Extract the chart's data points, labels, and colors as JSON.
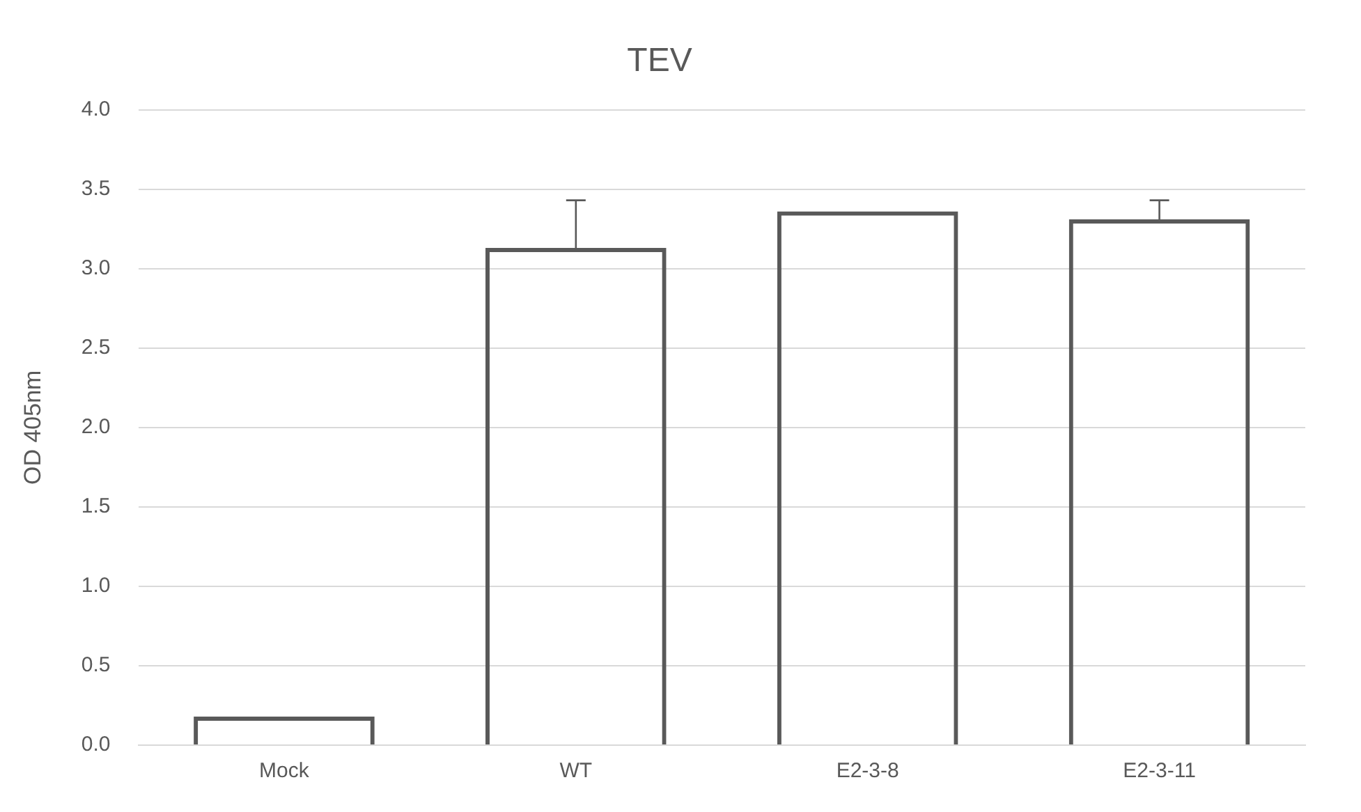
{
  "chart_data": {
    "type": "bar",
    "title": "TEV",
    "ylabel": "OD 405nm",
    "categories": [
      "Mock",
      "WT",
      "E2-3-8",
      "E2-3-11"
    ],
    "values": [
      0.18,
      3.13,
      3.36,
      3.31
    ],
    "errors": [
      null,
      [
        3.13,
        3.43
      ],
      null,
      [
        3.31,
        3.43
      ]
    ],
    "color": "#595959",
    "ylim": [
      0,
      4
    ],
    "yticks": [
      {
        "value": 0,
        "label": "0.0"
      },
      {
        "value": 0.5,
        "label": "0.5"
      },
      {
        "value": 1,
        "label": "1.0"
      },
      {
        "value": 1.5,
        "label": "1.5"
      },
      {
        "value": 2,
        "label": "2.0"
      },
      {
        "value": 2.5,
        "label": "2.5"
      },
      {
        "value": 3,
        "label": "3.0"
      },
      {
        "value": 3.5,
        "label": "3.5"
      },
      {
        "value": 4,
        "label": "4.0"
      }
    ],
    "grid": "y"
  }
}
